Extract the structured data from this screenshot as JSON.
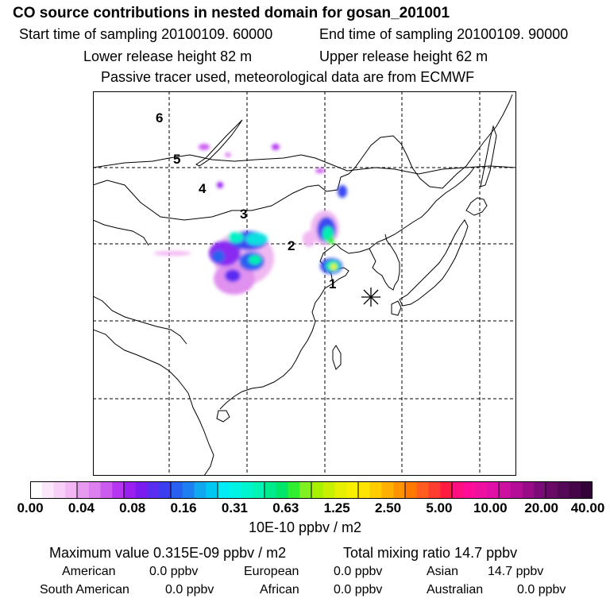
{
  "header": {
    "title": "CO  source contributions in nested domain for gosan_201001",
    "start_time": "Start time of sampling 20100109. 60000",
    "end_time": "End time of sampling 20100109. 90000",
    "lower_height": "Lower release height   82 m",
    "upper_height": "Upper release height   62 m",
    "tracer_note": "Passive tracer used, meteorological data are from ECMWF"
  },
  "map": {
    "region_labels": [
      "1",
      "2",
      "3",
      "4",
      "5",
      "6"
    ],
    "receptor_marker": "asterisk-icon"
  },
  "colorbar": {
    "ticks": [
      "0.00",
      "0.04",
      "0.08",
      "0.16",
      "0.31",
      "0.63",
      "1.25",
      "2.50",
      "5.00",
      "10.00",
      "20.00",
      "40.00"
    ],
    "unit": "10E-10 ppbv / m2",
    "colors": [
      [
        "#ffffff",
        "#fbe6fb",
        "#f7d0f7",
        "#f3b8f3"
      ],
      [
        "#e89af0",
        "#dd80ee",
        "#cc5cf0",
        "#b535f0"
      ],
      [
        "#9a20f0",
        "#7a1cf0",
        "#5a2cf0",
        "#3c3cf0"
      ],
      [
        "#2a60f0",
        "#1e80f0",
        "#10a8f0",
        "#00c8f0"
      ],
      [
        "#00ecf6",
        "#00f4e6",
        "#00f4d0",
        "#00f4b6"
      ],
      [
        "#00ec8c",
        "#00e66a",
        "#30ee30",
        "#80f020"
      ],
      [
        "#a6f000",
        "#c8f000",
        "#e6f000",
        "#f8f000"
      ],
      [
        "#ffe400",
        "#ffcc00",
        "#ffb000",
        "#ff9400"
      ],
      [
        "#ff7800",
        "#ff5c20",
        "#ff3c30",
        "#ff1c40"
      ],
      [
        "#ff1080",
        "#ff0c98",
        "#ee10a0",
        "#e010a8"
      ],
      [
        "#cc10a0",
        "#b40e98",
        "#980c88",
        "#7c0a78"
      ],
      [
        "#6a0a68",
        "#560858",
        "#440648",
        "#320438"
      ]
    ]
  },
  "footer": {
    "max_value": "Maximum value  0.315E-09 ppbv / m2",
    "total_mixing": "Total mixing ratio        14.7 ppbv",
    "american": "American",
    "american_val": "0.0 ppbv",
    "european": "European",
    "european_val": "0.0 ppbv",
    "asian": "Asian",
    "asian_val": "14.7 ppbv",
    "south_american": "South American",
    "south_american_val": "0.0 ppbv",
    "african": "African",
    "african_val": "0.0 ppbv",
    "australian": "Australian",
    "australian_val": "0.0 ppbv"
  }
}
